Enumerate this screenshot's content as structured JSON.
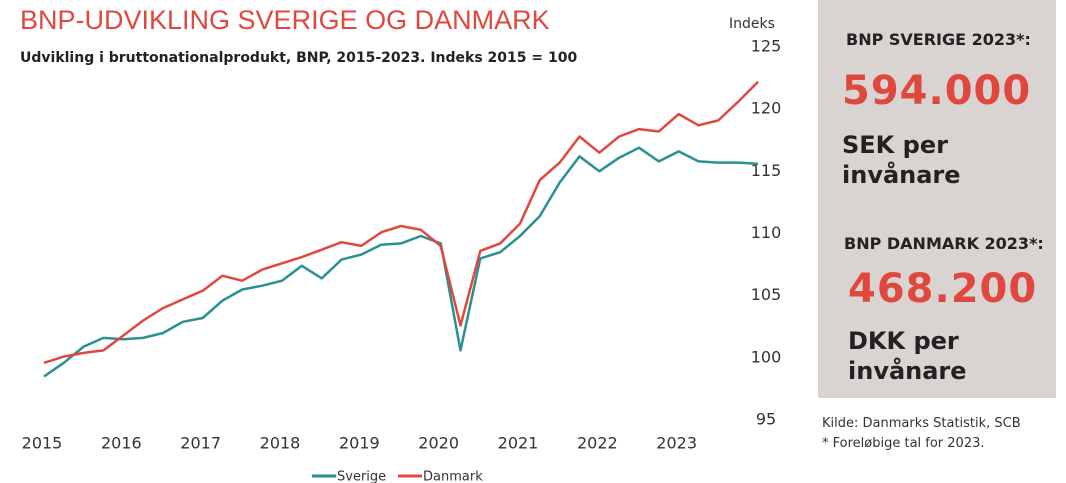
{
  "chart_data": {
    "type": "line",
    "title": "BNP-UDVIKLING SVERIGE OG DANMARK",
    "subtitle": "Udvikling i bruttonationalprodukt, BNP, 2015-2023. Indeks 2015 = 100",
    "y_label": "Indeks",
    "x": [
      2015,
      2015.25,
      2015.5,
      2015.75,
      2016,
      2016.25,
      2016.5,
      2016.75,
      2017,
      2017.25,
      2017.5,
      2017.75,
      2018,
      2018.25,
      2018.5,
      2018.75,
      2019,
      2019.25,
      2019.5,
      2019.75,
      2020,
      2020.25,
      2020.5,
      2020.75,
      2021,
      2021.25,
      2021.5,
      2021.75,
      2022,
      2022.25,
      2022.5,
      2022.75,
      2023,
      2023.25,
      2023.5,
      2023.75,
      2024
    ],
    "series": [
      {
        "name": "Sverige",
        "color": "#2a9090",
        "values": [
          98.5,
          99.6,
          100.9,
          101.6,
          101.5,
          101.6,
          102.0,
          102.9,
          103.2,
          104.6,
          105.5,
          105.8,
          106.2,
          107.4,
          106.4,
          107.9,
          108.3,
          109.1,
          109.2,
          109.8,
          109.2,
          100.6,
          108.0,
          108.5,
          109.8,
          111.4,
          114.1,
          116.2,
          115.0,
          116.1,
          116.9,
          115.8,
          116.6,
          115.8,
          115.7,
          115.7,
          115.6
        ]
      },
      {
        "name": "Danmark",
        "color": "#e0483e",
        "values": [
          99.6,
          100.1,
          100.4,
          100.6,
          101.8,
          103.0,
          104.0,
          104.7,
          105.4,
          106.6,
          106.2,
          107.1,
          107.6,
          108.1,
          108.7,
          109.3,
          109.0,
          110.1,
          110.6,
          110.3,
          109.0,
          102.6,
          108.6,
          109.2,
          110.8,
          114.3,
          115.7,
          117.8,
          116.5,
          117.8,
          118.4,
          118.2,
          119.6,
          118.7,
          119.1,
          120.6,
          122.2
        ]
      }
    ],
    "xlim": [
      2015,
      2024
    ],
    "xticks": [
      2015,
      2016,
      2017,
      2018,
      2019,
      2020,
      2021,
      2022,
      2023
    ],
    "ylim": [
      95,
      125
    ],
    "yticks": [
      95,
      100,
      105,
      110,
      115,
      120,
      125
    ],
    "grid": false,
    "legend": "bottom"
  },
  "panel": {
    "sweden_heading": "BNP SVERIGE 2023*:",
    "sweden_value": "594.000",
    "sweden_unit": "SEK per invånare",
    "denmark_heading": "BNP DANMARK 2023*:",
    "denmark_value": "468.200",
    "denmark_unit": "DKK per invånare",
    "source": "Kilde: Danmarks Statistik, SCB",
    "footnote": "* Foreløbige tal for 2023."
  }
}
